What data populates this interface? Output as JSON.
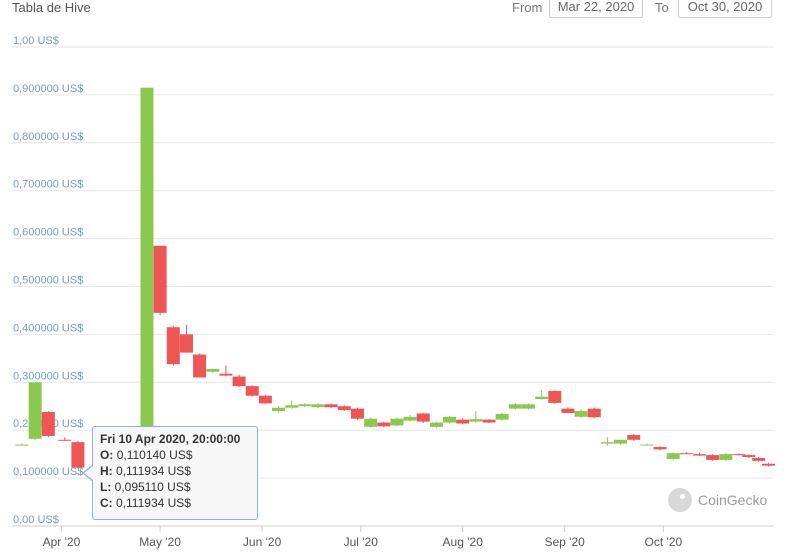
{
  "header": {
    "title": "Tabla de Hive",
    "from_label": "From",
    "from_value": "Mar 22, 2020",
    "to_label": "To",
    "to_value": "Oct 30, 2020"
  },
  "tooltip": {
    "date": "Fri 10 Apr 2020, 20:00:00",
    "open_key": "O:",
    "open": "0,110140 US$",
    "high_key": "H:",
    "high": "0,111934 US$",
    "low_key": "L:",
    "low": "0,095110 US$",
    "close_key": "C:",
    "close": "0,111934 US$"
  },
  "watermark": {
    "text": "CoinGecko",
    "icon": "coingecko-logo-icon"
  },
  "colors": {
    "up": "#8cc850",
    "down": "#ee5555",
    "grid": "#e6e6e6",
    "ytick": "#6f9bd0"
  },
  "chart_data": {
    "type": "candlestick",
    "title": "Tabla de Hive",
    "ylim": [
      0,
      1.0
    ],
    "y_ticks": [
      {
        "v": 0,
        "label": "0,00 US$"
      },
      {
        "v": 0.1,
        "label": "0,100000 US$"
      },
      {
        "v": 0.2,
        "label": "0,200000 US$"
      },
      {
        "v": 0.3,
        "label": "0,300000 US$"
      },
      {
        "v": 0.4,
        "label": "0,400000 US$"
      },
      {
        "v": 0.5,
        "label": "0,500000 US$"
      },
      {
        "v": 0.6,
        "label": "0,600000 US$"
      },
      {
        "v": 0.7,
        "label": "0,700000 US$"
      },
      {
        "v": 0.8,
        "label": "0,800000 US$"
      },
      {
        "v": 0.9,
        "label": "0,900000 US$"
      },
      {
        "v": 1.0,
        "label": "1,00 US$"
      }
    ],
    "x_range": [
      "2020-03-20",
      "2020-10-31"
    ],
    "x_ticks": [
      {
        "date": "2020-04-01",
        "label": "Apr '20"
      },
      {
        "date": "2020-05-01",
        "label": "May '20"
      },
      {
        "date": "2020-06-01",
        "label": "Jun '20"
      },
      {
        "date": "2020-07-01",
        "label": "Jul '20"
      },
      {
        "date": "2020-08-01",
        "label": "Aug '20"
      },
      {
        "date": "2020-09-01",
        "label": "Sep '20"
      },
      {
        "date": "2020-10-01",
        "label": "Oct '20"
      }
    ],
    "candles": [
      {
        "date": "2020-03-20",
        "open": 0.17,
        "high": 0.172,
        "low": 0.168,
        "close": 0.17
      },
      {
        "date": "2020-03-24",
        "open": 0.182,
        "high": 0.3,
        "low": 0.18,
        "close": 0.3
      },
      {
        "date": "2020-03-28",
        "open": 0.238,
        "high": 0.24,
        "low": 0.185,
        "close": 0.188
      },
      {
        "date": "2020-04-02",
        "open": 0.18,
        "high": 0.185,
        "low": 0.178,
        "close": 0.178
      },
      {
        "date": "2020-04-06",
        "open": 0.175,
        "high": 0.178,
        "low": 0.12,
        "close": 0.122
      },
      {
        "date": "2020-04-10",
        "open": 0.11014,
        "high": 0.111934,
        "low": 0.09511,
        "close": 0.111934
      },
      {
        "date": "2020-04-27",
        "open": 0.2,
        "high": 0.915,
        "low": 0.19,
        "close": 0.915
      },
      {
        "date": "2020-05-01",
        "open": 0.585,
        "high": 0.585,
        "low": 0.44,
        "close": 0.445
      },
      {
        "date": "2020-05-05",
        "open": 0.415,
        "high": 0.418,
        "low": 0.335,
        "close": 0.338
      },
      {
        "date": "2020-05-09",
        "open": 0.4,
        "high": 0.42,
        "low": 0.362,
        "close": 0.362
      },
      {
        "date": "2020-05-13",
        "open": 0.358,
        "high": 0.36,
        "low": 0.31,
        "close": 0.31
      },
      {
        "date": "2020-05-17",
        "open": 0.322,
        "high": 0.328,
        "low": 0.32,
        "close": 0.328
      },
      {
        "date": "2020-05-21",
        "open": 0.318,
        "high": 0.335,
        "low": 0.312,
        "close": 0.314
      },
      {
        "date": "2020-05-25",
        "open": 0.312,
        "high": 0.316,
        "low": 0.29,
        "close": 0.292
      },
      {
        "date": "2020-05-29",
        "open": 0.292,
        "high": 0.294,
        "low": 0.27,
        "close": 0.272
      },
      {
        "date": "2020-06-02",
        "open": 0.272,
        "high": 0.274,
        "low": 0.255,
        "close": 0.256
      },
      {
        "date": "2020-06-06",
        "open": 0.24,
        "high": 0.25,
        "low": 0.238,
        "close": 0.247
      },
      {
        "date": "2020-06-10",
        "open": 0.247,
        "high": 0.262,
        "low": 0.245,
        "close": 0.252
      },
      {
        "date": "2020-06-14",
        "open": 0.25,
        "high": 0.256,
        "low": 0.248,
        "close": 0.254
      },
      {
        "date": "2020-06-18",
        "open": 0.248,
        "high": 0.256,
        "low": 0.246,
        "close": 0.254
      },
      {
        "date": "2020-06-22",
        "open": 0.254,
        "high": 0.256,
        "low": 0.246,
        "close": 0.248
      },
      {
        "date": "2020-06-26",
        "open": 0.25,
        "high": 0.252,
        "low": 0.24,
        "close": 0.242
      },
      {
        "date": "2020-06-30",
        "open": 0.245,
        "high": 0.247,
        "low": 0.222,
        "close": 0.224
      },
      {
        "date": "2020-07-04",
        "open": 0.207,
        "high": 0.226,
        "low": 0.205,
        "close": 0.224
      },
      {
        "date": "2020-07-08",
        "open": 0.216,
        "high": 0.218,
        "low": 0.206,
        "close": 0.208
      },
      {
        "date": "2020-07-12",
        "open": 0.21,
        "high": 0.226,
        "low": 0.208,
        "close": 0.224
      },
      {
        "date": "2020-07-16",
        "open": 0.22,
        "high": 0.232,
        "low": 0.218,
        "close": 0.228
      },
      {
        "date": "2020-07-20",
        "open": 0.235,
        "high": 0.236,
        "low": 0.215,
        "close": 0.218
      },
      {
        "date": "2020-07-24",
        "open": 0.207,
        "high": 0.218,
        "low": 0.205,
        "close": 0.216
      },
      {
        "date": "2020-07-28",
        "open": 0.216,
        "high": 0.23,
        "low": 0.214,
        "close": 0.228
      },
      {
        "date": "2020-08-01",
        "open": 0.222,
        "high": 0.225,
        "low": 0.212,
        "close": 0.214
      },
      {
        "date": "2020-08-05",
        "open": 0.218,
        "high": 0.24,
        "low": 0.216,
        "close": 0.223
      },
      {
        "date": "2020-08-09",
        "open": 0.222,
        "high": 0.223,
        "low": 0.215,
        "close": 0.216
      },
      {
        "date": "2020-08-13",
        "open": 0.222,
        "high": 0.236,
        "low": 0.22,
        "close": 0.234
      },
      {
        "date": "2020-08-17",
        "open": 0.245,
        "high": 0.256,
        "low": 0.243,
        "close": 0.254
      },
      {
        "date": "2020-08-21",
        "open": 0.245,
        "high": 0.256,
        "low": 0.243,
        "close": 0.254
      },
      {
        "date": "2020-08-25",
        "open": 0.265,
        "high": 0.283,
        "low": 0.264,
        "close": 0.27
      },
      {
        "date": "2020-08-29",
        "open": 0.282,
        "high": 0.283,
        "low": 0.255,
        "close": 0.257
      },
      {
        "date": "2020-09-02",
        "open": 0.245,
        "high": 0.248,
        "low": 0.235,
        "close": 0.236
      },
      {
        "date": "2020-09-06",
        "open": 0.228,
        "high": 0.244,
        "low": 0.226,
        "close": 0.24
      },
      {
        "date": "2020-09-10",
        "open": 0.245,
        "high": 0.247,
        "low": 0.225,
        "close": 0.227
      },
      {
        "date": "2020-09-14",
        "open": 0.172,
        "high": 0.185,
        "low": 0.168,
        "close": 0.175
      },
      {
        "date": "2020-09-18",
        "open": 0.172,
        "high": 0.18,
        "low": 0.17,
        "close": 0.18
      },
      {
        "date": "2020-09-22",
        "open": 0.19,
        "high": 0.192,
        "low": 0.178,
        "close": 0.18
      },
      {
        "date": "2020-09-26",
        "open": 0.17,
        "high": 0.172,
        "low": 0.168,
        "close": 0.17
      },
      {
        "date": "2020-09-30",
        "open": 0.165,
        "high": 0.166,
        "low": 0.158,
        "close": 0.16
      },
      {
        "date": "2020-10-04",
        "open": 0.14,
        "high": 0.154,
        "low": 0.138,
        "close": 0.152
      },
      {
        "date": "2020-10-08",
        "open": 0.152,
        "high": 0.154,
        "low": 0.15,
        "close": 0.151
      },
      {
        "date": "2020-10-12",
        "open": 0.15,
        "high": 0.153,
        "low": 0.146,
        "close": 0.147
      },
      {
        "date": "2020-10-16",
        "open": 0.148,
        "high": 0.15,
        "low": 0.136,
        "close": 0.138
      },
      {
        "date": "2020-10-20",
        "open": 0.138,
        "high": 0.152,
        "low": 0.136,
        "close": 0.15
      },
      {
        "date": "2020-10-24",
        "open": 0.15,
        "high": 0.152,
        "low": 0.148,
        "close": 0.149
      },
      {
        "date": "2020-10-27",
        "open": 0.148,
        "high": 0.15,
        "low": 0.142,
        "close": 0.144
      },
      {
        "date": "2020-10-30",
        "open": 0.142,
        "high": 0.144,
        "low": 0.134,
        "close": 0.136
      },
      {
        "date": "2020-11-02",
        "open": 0.13,
        "high": 0.132,
        "low": 0.124,
        "close": 0.126
      }
    ]
  }
}
